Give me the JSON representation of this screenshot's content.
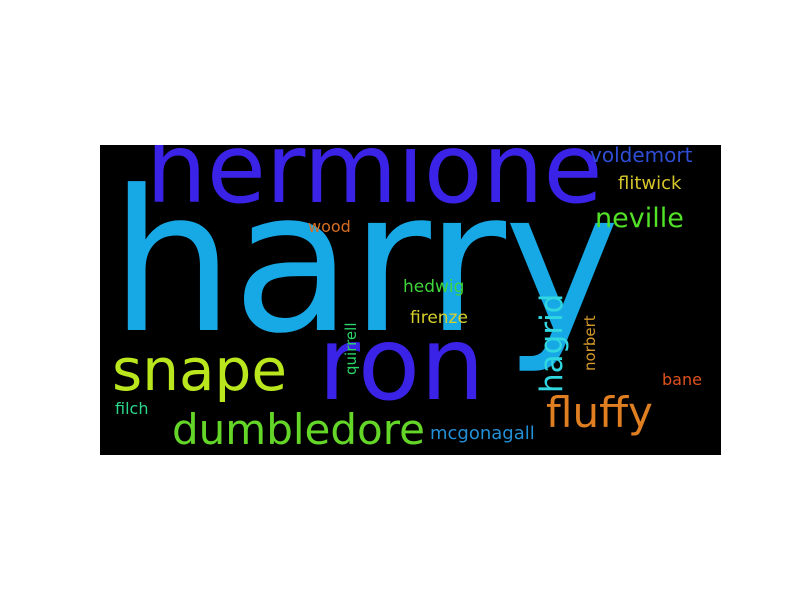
{
  "wordcloud": {
    "background": "#000000",
    "words": {
      "harry": {
        "text": "harry",
        "color": "#17a9e6"
      },
      "hermione": {
        "text": "hermione",
        "color": "#3a22e6"
      },
      "ron": {
        "text": "ron",
        "color": "#3a22e6"
      },
      "snape": {
        "text": "snape",
        "color": "#b9e61c"
      },
      "dumbledore": {
        "text": "dumbledore",
        "color": "#63d628"
      },
      "fluffy": {
        "text": "fluffy",
        "color": "#e07f22"
      },
      "hagrid": {
        "text": "hagrid",
        "color": "#30d6e0"
      },
      "neville": {
        "text": "neville",
        "color": "#52e028"
      },
      "voldemort": {
        "text": "voldemort",
        "color": "#2f4ed6"
      },
      "flitwick": {
        "text": "flitwick",
        "color": "#d6c62c"
      },
      "wood": {
        "text": "wood",
        "color": "#d66e22"
      },
      "hedwig": {
        "text": "hedwig",
        "color": "#3fd63a"
      },
      "firenze": {
        "text": "firenze",
        "color": "#d6d02c"
      },
      "quirrell": {
        "text": "quirrell",
        "color": "#2bd66a"
      },
      "norbert": {
        "text": "norbert",
        "color": "#d69a2a"
      },
      "bane": {
        "text": "bane",
        "color": "#e0521e"
      },
      "filch": {
        "text": "filch",
        "color": "#2bd68a"
      },
      "mcgonagall": {
        "text": "mcgonagall",
        "color": "#2290d6"
      }
    }
  }
}
